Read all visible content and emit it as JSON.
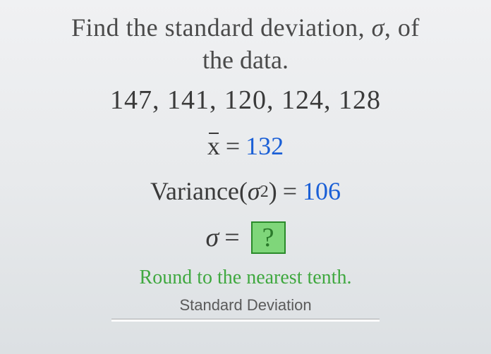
{
  "problem": {
    "title_part1": "Find the standard deviation, ",
    "sigma_symbol": "σ",
    "title_part2": ", of",
    "title_line2": "the data.",
    "data_values": "147, 141, 120, 124, 128",
    "xbar_symbol": "x",
    "equals": "=",
    "mean_value": "132",
    "variance_label": "Variance",
    "variance_open": "(",
    "variance_sigma": "σ",
    "variance_exp": "2",
    "variance_close": ")",
    "variance_value": "106",
    "sigma_line_symbol": "σ",
    "answer_placeholder": "?",
    "round_hint": "Round to the nearest tenth.",
    "std_dev_label": "Standard Deviation"
  },
  "style": {
    "background_gradient_top": "#f0f1f3",
    "background_gradient_bottom": "#dce0e3",
    "text_color": "#3a3a3a",
    "blue_value_color": "#1a5fd6",
    "green_hint_color": "#3fa83f",
    "answer_box_bg": "#7fd67a",
    "answer_box_border": "#2a8a2a",
    "answer_box_text": "#2a7a2a",
    "title_fontsize": 36,
    "data_fontsize": 38,
    "hint_fontsize": 28
  }
}
